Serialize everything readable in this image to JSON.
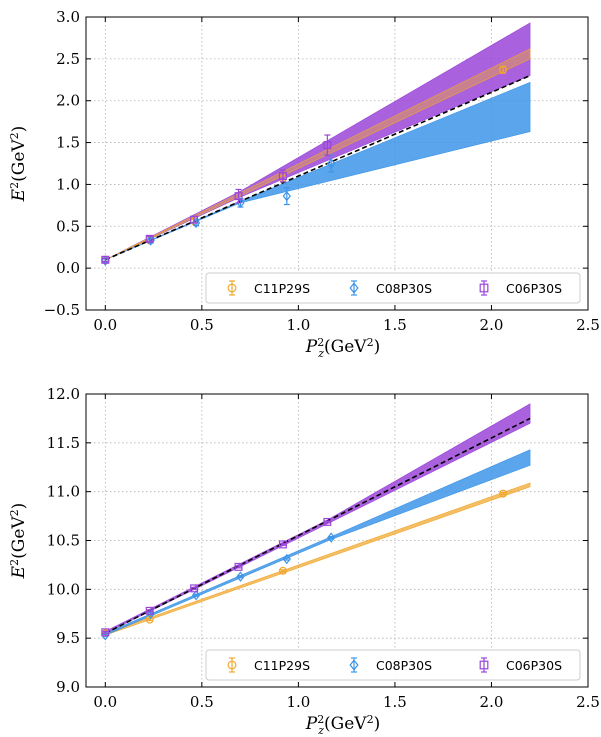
{
  "colors": {
    "C11P29S": "#f0a830",
    "C08P30S": "#3d95e8",
    "C06P30S": "#9b45d8",
    "ref": "#000000",
    "grid": "#b0b0b0"
  },
  "chart_data": [
    {
      "type": "scatter",
      "xlabel_main": "P",
      "xlabel_sub": "z",
      "xlabel_sup": "2",
      "xlabel_unit": "(GeV",
      "xlabel_unit_sup": "2",
      "xlabel_close": ")",
      "ylabel_main": "E",
      "ylabel_sup": "2",
      "ylabel_unit": "(GeV",
      "ylabel_unit_sup": "2",
      "ylabel_close": ")",
      "xlim": [
        -0.1,
        2.5
      ],
      "ylim": [
        -0.5,
        3.0
      ],
      "xticks": [
        0.0,
        0.5,
        1.0,
        1.5,
        2.0,
        2.5
      ],
      "yticks": [
        -0.5,
        0.0,
        0.5,
        1.0,
        1.5,
        2.0,
        2.5,
        3.0
      ],
      "xtick_labels": [
        "0.0",
        "0.5",
        "1.0",
        "1.5",
        "2.0",
        "2.5"
      ],
      "ytick_labels": [
        "−0.5",
        "0.0",
        "0.5",
        "1.0",
        "1.5",
        "2.0",
        "2.5",
        "3.0"
      ],
      "grid": true,
      "legend": "bottom",
      "reference_line": {
        "x": [
          0.0,
          2.2
        ],
        "y": [
          0.1,
          2.3
        ]
      },
      "bands": [
        {
          "series": "C08P30S",
          "x": [
            0.0,
            0.7,
            2.2
          ],
          "lo": [
            0.1,
            0.78,
            1.63
          ],
          "hi": [
            0.1,
            0.8,
            2.22
          ]
        },
        {
          "series": "C06P30S",
          "x": [
            0.0,
            0.7,
            2.2
          ],
          "lo": [
            0.1,
            0.85,
            2.3
          ],
          "hi": [
            0.1,
            0.92,
            2.93
          ]
        },
        {
          "series": "C11P29S",
          "x": [
            0.0,
            2.2
          ],
          "lo": [
            0.1,
            2.5
          ],
          "hi": [
            0.1,
            2.62
          ]
        }
      ],
      "series": [
        {
          "name": "C11P29S",
          "marker": "circle",
          "x": [
            0.0,
            0.23,
            0.46,
            0.92,
            2.06
          ],
          "y": [
            0.1,
            0.33,
            0.56,
            1.07,
            2.37
          ],
          "err": [
            0.02,
            0.02,
            0.02,
            0.03,
            0.04
          ]
        },
        {
          "name": "C08P30S",
          "marker": "diamond",
          "x": [
            0.0,
            0.235,
            0.47,
            0.7,
            0.94,
            1.17
          ],
          "y": [
            0.09,
            0.33,
            0.54,
            0.78,
            0.86,
            1.25
          ],
          "err": [
            0.02,
            0.03,
            0.03,
            0.05,
            0.1,
            0.1
          ]
        },
        {
          "name": "C06P30S",
          "marker": "square",
          "x": [
            0.0,
            0.23,
            0.46,
            0.69,
            0.92,
            1.15
          ],
          "y": [
            0.1,
            0.35,
            0.58,
            0.86,
            1.1,
            1.47
          ],
          "err": [
            0.02,
            0.03,
            0.04,
            0.08,
            0.07,
            0.12
          ]
        }
      ]
    },
    {
      "type": "scatter",
      "xlabel_main": "P",
      "xlabel_sub": "z",
      "xlabel_sup": "2",
      "xlabel_unit": "(GeV",
      "xlabel_unit_sup": "2",
      "xlabel_close": ")",
      "ylabel_main": "E",
      "ylabel_sup": "2",
      "ylabel_unit": "(GeV",
      "ylabel_unit_sup": "2",
      "ylabel_close": ")",
      "xlim": [
        -0.1,
        2.5
      ],
      "ylim": [
        9.0,
        12.0
      ],
      "xticks": [
        0.0,
        0.5,
        1.0,
        1.5,
        2.0,
        2.5
      ],
      "yticks": [
        9.0,
        9.5,
        10.0,
        10.5,
        11.0,
        11.5,
        12.0
      ],
      "xtick_labels": [
        "0.0",
        "0.5",
        "1.0",
        "1.5",
        "2.0",
        "2.5"
      ],
      "ytick_labels": [
        "9.0",
        "9.5",
        "10.0",
        "10.5",
        "11.0",
        "11.5",
        "12.0"
      ],
      "grid": true,
      "legend": "bottom",
      "reference_line": {
        "x": [
          0.0,
          2.2
        ],
        "y": [
          9.55,
          11.75
        ]
      },
      "bands": [
        {
          "series": "C11P29S",
          "x": [
            0.0,
            2.2
          ],
          "lo": [
            9.53,
            11.05
          ],
          "hi": [
            9.55,
            11.09
          ]
        },
        {
          "series": "C08P30S",
          "x": [
            0.0,
            1.17,
            2.2
          ],
          "lo": [
            9.53,
            10.51,
            11.27
          ],
          "hi": [
            9.55,
            10.54,
            11.43
          ]
        },
        {
          "series": "C06P30S",
          "x": [
            0.0,
            1.15,
            2.2
          ],
          "lo": [
            9.55,
            10.67,
            11.7
          ],
          "hi": [
            9.57,
            10.71,
            11.9
          ]
        }
      ],
      "series": [
        {
          "name": "C11P29S",
          "marker": "circle",
          "x": [
            0.0,
            0.23,
            0.92,
            2.06
          ],
          "y": [
            9.55,
            9.69,
            10.19,
            10.98
          ],
          "err": [
            0.01,
            0.01,
            0.01,
            0.01
          ]
        },
        {
          "name": "C08P30S",
          "marker": "diamond",
          "x": [
            0.0,
            0.235,
            0.47,
            0.7,
            0.94,
            1.17
          ],
          "y": [
            9.53,
            9.75,
            9.94,
            10.13,
            10.31,
            10.53
          ],
          "err": [
            0.01,
            0.01,
            0.01,
            0.01,
            0.01,
            0.01
          ]
        },
        {
          "name": "C06P30S",
          "marker": "square",
          "x": [
            0.0,
            0.23,
            0.46,
            0.69,
            0.92,
            1.15
          ],
          "y": [
            9.56,
            9.78,
            10.01,
            10.23,
            10.46,
            10.69
          ],
          "err": [
            0.01,
            0.01,
            0.01,
            0.01,
            0.01,
            0.01
          ]
        }
      ]
    }
  ]
}
